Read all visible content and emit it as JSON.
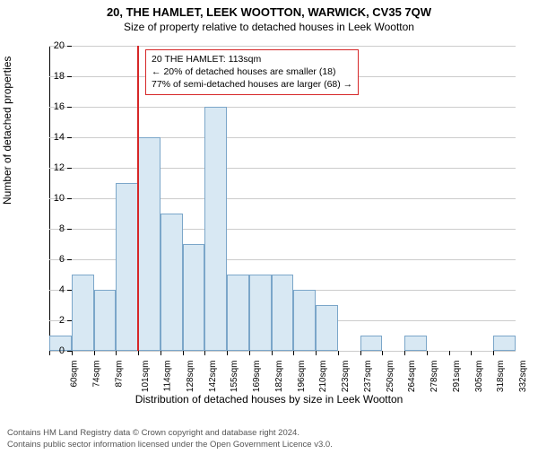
{
  "title_main": "20, THE HAMLET, LEEK WOOTTON, WARWICK, CV35 7QW",
  "title_sub": "Size of property relative to detached houses in Leek Wootton",
  "ylabel": "Number of detached properties",
  "xlabel": "Distribution of detached houses by size in Leek Wootton",
  "histogram": {
    "type": "histogram",
    "y_max": 20,
    "y_tick_step": 2,
    "bar_fill": "#d8e8f3",
    "bar_border": "#7ba6c9",
    "grid_color": "#cccccc",
    "background": "#ffffff",
    "marker_color": "#d62728",
    "marker_x_label": "114sqm",
    "x_labels": [
      "60sqm",
      "74sqm",
      "87sqm",
      "101sqm",
      "114sqm",
      "128sqm",
      "142sqm",
      "155sqm",
      "169sqm",
      "182sqm",
      "196sqm",
      "210sqm",
      "223sqm",
      "237sqm",
      "250sqm",
      "264sqm",
      "278sqm",
      "291sqm",
      "305sqm",
      "318sqm",
      "332sqm"
    ],
    "values": [
      1,
      5,
      4,
      11,
      14,
      9,
      7,
      16,
      5,
      5,
      5,
      4,
      3,
      0,
      1,
      0,
      1,
      0,
      0,
      0,
      1
    ]
  },
  "annotation": {
    "line1": "20 THE HAMLET: 113sqm",
    "line2": "← 20% of detached houses are smaller (18)",
    "line3": "77% of semi-detached houses are larger (68) →"
  },
  "footer": {
    "line1": "Contains HM Land Registry data © Crown copyright and database right 2024.",
    "line2": "Contains public sector information licensed under the Open Government Licence v3.0."
  }
}
